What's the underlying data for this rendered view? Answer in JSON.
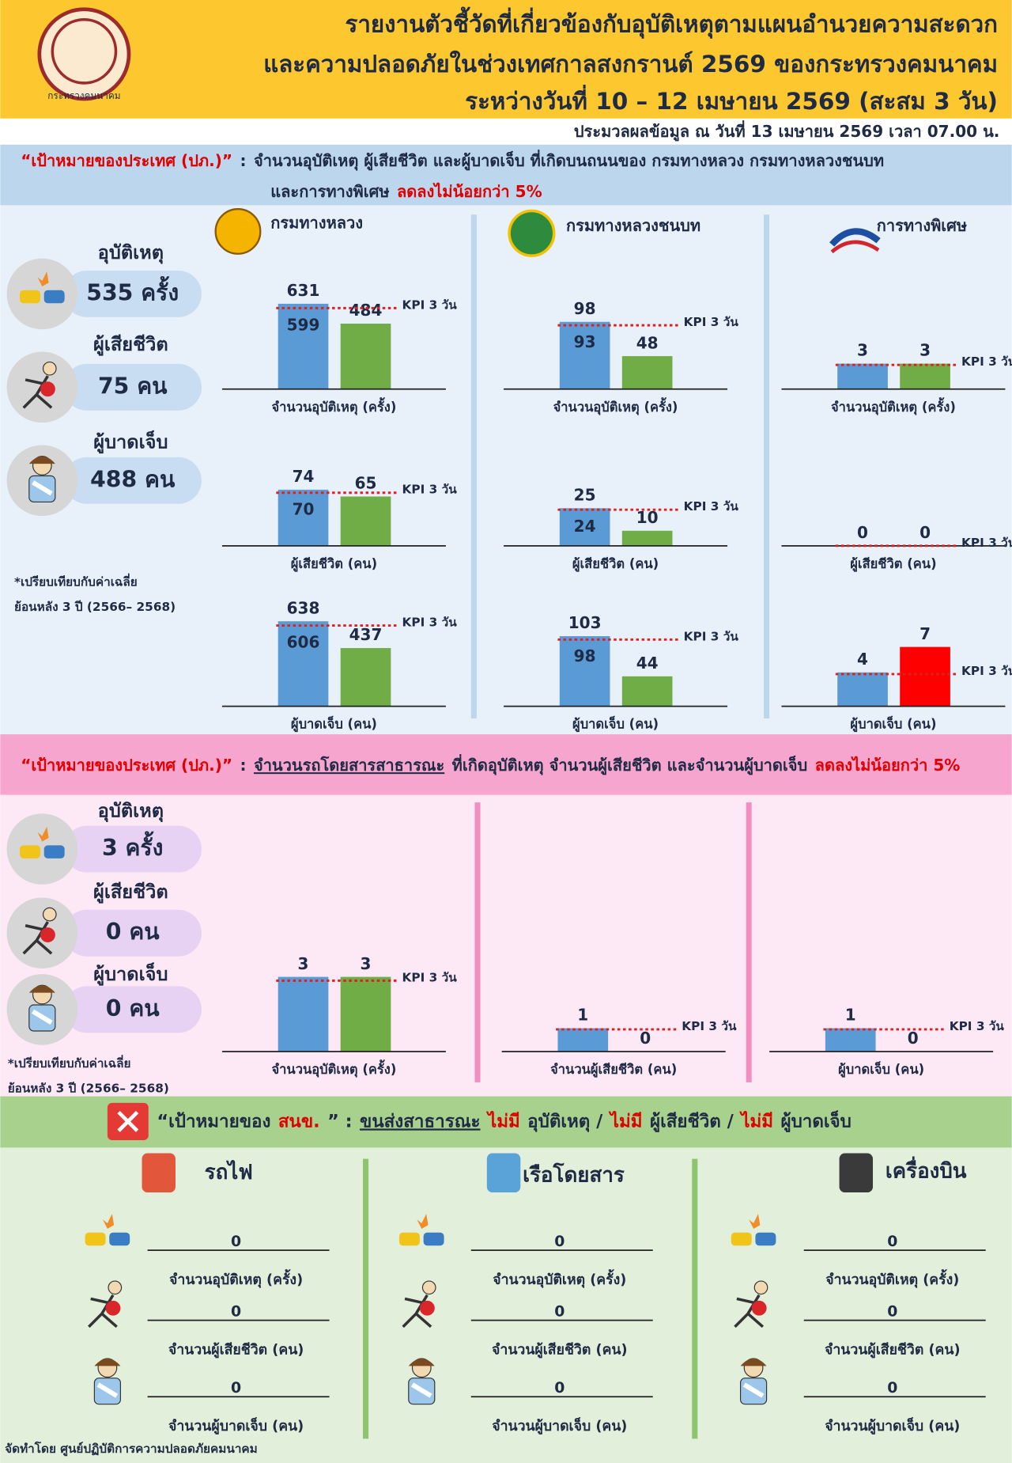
{
  "header": {
    "logo_text": "กระทรวงคมนาคม",
    "title_lines": [
      "รายงานตัวชี้วัดที่เกี่ยวข้องกับอุบัติเหตุตามแผนอำนวยความสะดวก",
      "และความปลอดภัยในช่วงเทศกาลสงกรานต์ 2569 ของกระทรวงคมนาคม",
      "ระหว่างวันที่ 10 – 12 เมษายน 2569 (สะสม 3 วัน)"
    ],
    "updated": "ประมวลผลข้อมูล ณ วันที่ 13 เมษายน 2569 เวลา 07.00 น."
  },
  "bar_colors": {
    "baseline": "#5b9bd5",
    "actual": "#70ad47",
    "kpi_line": "#e02020"
  },
  "section1": {
    "goal_lines": [
      [
        {
          "text": "“เป้าหมายของประเทศ (ปภ.)”",
          "style": "red"
        },
        {
          "text": ":"
        },
        {
          "text": "จำนวนอุบัติเหตุ ผู้เสียชีวิต และผู้บาดเจ็บ ที่เกิดบนถนนของ กรมทางหลวง กรมทางหลวงชนบท"
        }
      ],
      [
        {
          "text": "และการทางพิเศษ"
        },
        {
          "text": "ลดลงไม่น้อยกว่า 5%",
          "style": "red"
        }
      ]
    ],
    "summary": [
      {
        "label": "อุบัติเหตุ",
        "value": "535 ครั้ง"
      },
      {
        "label": "ผู้เสียชีวิต",
        "value": "75 คน"
      },
      {
        "label": "ผู้บาดเจ็บ",
        "value": "488 คน"
      }
    ],
    "note": [
      "*เปรียบเทียบกับค่าเฉลี่ย",
      "ย้อนหลัง 3 ปี (2566– 2568)"
    ],
    "agencies": [
      {
        "name": "กรมทางหลวง",
        "charts": [
          {
            "label": "จำนวนอุบัติเหตุ (ครั้ง)",
            "kpi_label": "KPI 3 วัน",
            "baseline": 631,
            "kpi": 599,
            "actual": 484,
            "ylim": [
              0,
              690
            ]
          },
          {
            "label": "ผู้เสียชีวิต (คน)",
            "kpi_label": "KPI 3 วัน",
            "baseline": 74,
            "kpi": 70,
            "actual": 65,
            "ylim": [
              0,
              123
            ]
          },
          {
            "label": "ผู้บาดเจ็บ (คน)",
            "kpi_label": "KPI 3 วัน",
            "baseline": 638,
            "kpi": 606,
            "actual": 437,
            "ylim": [
              0,
              700
            ]
          }
        ]
      },
      {
        "name": "กรมทางหลวงชนบท",
        "charts": [
          {
            "label": "จำนวนอุบัติเหตุ (ครั้ง)",
            "kpi_label": "KPI 3 วัน",
            "baseline": 98,
            "kpi": 93,
            "actual": 48,
            "ylim": [
              0,
              136
            ]
          },
          {
            "label": "ผู้เสียชีวิต (คน)",
            "kpi_label": "KPI 3 วัน",
            "baseline": 25,
            "kpi": 24,
            "actual": 10,
            "ylim": [
              0,
              62
            ]
          },
          {
            "label": "ผู้บาดเจ็บ (คน)",
            "kpi_label": "KPI 3 วัน",
            "baseline": 103,
            "kpi": 98,
            "actual": 44,
            "ylim": [
              0,
              137
            ]
          }
        ]
      },
      {
        "name": "การทางพิเศษ",
        "charts": [
          {
            "label": "จำนวนอุบัติเหตุ (ครั้ง)",
            "kpi_label": "KPI 3 วัน",
            "baseline": 3,
            "kpi_line": 2.85,
            "actual": 3,
            "ylim": [
              0,
              11
            ]
          },
          {
            "label": "ผู้เสียชีวิต (คน)",
            "kpi_label": "KPI 3 วัน",
            "baseline": 0,
            "kpi_line": 0,
            "actual": 0,
            "ylim": [
              0,
              10
            ]
          },
          {
            "label": "ผู้บาดเจ็บ (คน)",
            "kpi_label": "KPI 3 วัน",
            "baseline": 4,
            "kpi_line": 3.8,
            "actual": 7,
            "actual_color": "#ff0000",
            "ylim": [
              0,
              11
            ]
          }
        ]
      }
    ]
  },
  "section2": {
    "goal_lines": [
      [
        {
          "text": "“เป้าหมายของประเทศ (ปภ.)”",
          "style": "red"
        },
        {
          "text": ":"
        },
        {
          "text": "จำนวนรถโดยสารสาธารณะ",
          "style": "underline"
        },
        {
          "text": "ที่เกิดอุบัติเหตุ จำนวนผู้เสียชีวิต และจำนวนผู้บาดเจ็บ"
        },
        {
          "text": "ลดลงไม่น้อยกว่า 5%",
          "style": "red"
        }
      ]
    ],
    "summary": [
      {
        "label": "อุบัติเหตุ",
        "value": "3 ครั้ง"
      },
      {
        "label": "ผู้เสียชีวิต",
        "value": "0 คน"
      },
      {
        "label": "ผู้บาดเจ็บ",
        "value": "0 คน"
      }
    ],
    "note": [
      "*เปรียบเทียบกับค่าเฉลี่ย",
      "ย้อนหลัง 3 ปี (2566– 2568)"
    ],
    "charts": [
      {
        "label": "จำนวนอุบัติเหตุ (ครั้ง)",
        "kpi_label": "KPI 3 วัน",
        "baseline": 3,
        "kpi_line": 2.85,
        "actual": 3,
        "ylim": [
          0,
          3.75
        ]
      },
      {
        "label": "จำนวนผู้เสียชีวิต (คน)",
        "kpi_label": "KPI 3 วัน",
        "baseline": 1,
        "kpi_line": 0.95,
        "actual": 0,
        "ylim": [
          0,
          4
        ]
      },
      {
        "label": "ผู้บาดเจ็บ (คน)",
        "kpi_label": "KPI 3 วัน",
        "baseline": 1,
        "kpi_line": 0.95,
        "actual": 0,
        "ylim": [
          0,
          4
        ]
      }
    ]
  },
  "section3": {
    "goal_lines": [
      [
        {
          "text": "“เป้าหมายของ"
        },
        {
          "text": "สนข.",
          "style": "red"
        },
        {
          "text": "” :"
        },
        {
          "text": "ขนส่งสาธารณะ",
          "style": "underline"
        },
        {
          "text": "ไม่มี",
          "style": "red"
        },
        {
          "text": "อุบัติเหตุ /"
        },
        {
          "text": "ไม่มี",
          "style": "red"
        },
        {
          "text": "ผู้เสียชีวิต /"
        },
        {
          "text": "ไม่มี",
          "style": "red"
        },
        {
          "text": "ผู้บาดเจ็บ"
        }
      ]
    ],
    "modes": [
      {
        "name": "รถไฟ",
        "rows": [
          {
            "label": "จำนวนอุบัติเหตุ (ครั้ง)",
            "value": 0
          },
          {
            "label": "จำนวนผู้เสียชีวิต (คน)",
            "value": 0
          },
          {
            "label": "จำนวนผู้บาดเจ็บ (คน)",
            "value": 0
          }
        ]
      },
      {
        "name": "เรือโดยสาร",
        "rows": [
          {
            "label": "จำนวนอุบัติเหตุ (ครั้ง)",
            "value": 0
          },
          {
            "label": "จำนวนผู้เสียชีวิต (คน)",
            "value": 0
          },
          {
            "label": "จำนวนผู้บาดเจ็บ (คน)",
            "value": 0
          }
        ]
      },
      {
        "name": "เครื่องบิน",
        "rows": [
          {
            "label": "จำนวนอุบัติเหตุ (ครั้ง)",
            "value": 0
          },
          {
            "label": "จำนวนผู้เสียชีวิต (คน)",
            "value": 0
          },
          {
            "label": "จำนวนผู้บาดเจ็บ (คน)",
            "value": 0
          }
        ]
      }
    ]
  },
  "footer": "จัดทำโดย ศูนย์ปฏิบัติการความปลอดภัยคมนาคม"
}
